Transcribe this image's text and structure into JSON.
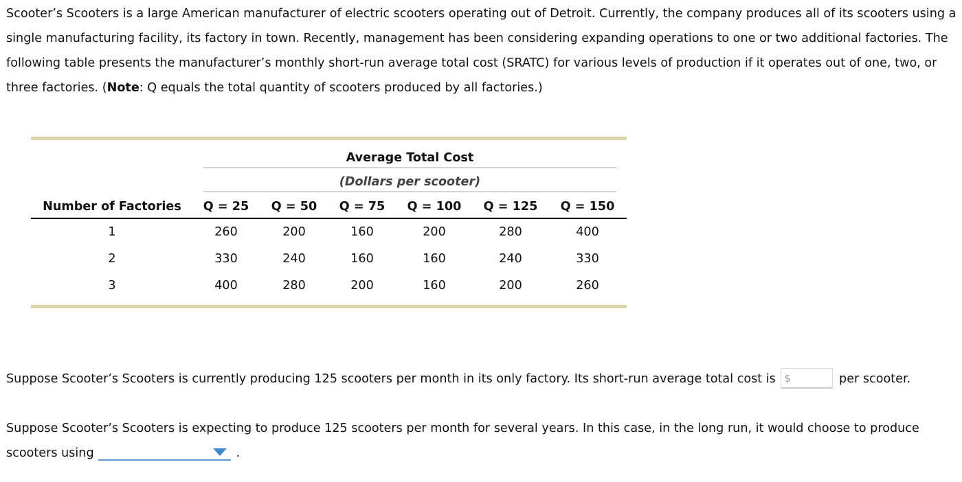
{
  "intro": {
    "part1": "Scooter’s Scooters is a large American manufacturer of electric scooters operating out of Detroit. Currently, the company produces all of its scooters using a single manufacturing facility, its factory in town. Recently, management has been considering expanding operations to one or two additional factories. The following table presents the manufacturer’s monthly short-run average total cost (SRATC) for various levels of production if it operates out of one, two, or three factories. (",
    "note_label": "Note",
    "part2": ": Q equals the total quantity of scooters produced by all factories.)"
  },
  "table": {
    "span_title": "Average Total Cost",
    "span_subtitle": "(Dollars per scooter)",
    "row_header": "Number of Factories",
    "columns": [
      "Q = 25",
      "Q = 50",
      "Q = 75",
      "Q = 100",
      "Q = 125",
      "Q = 150"
    ],
    "rows": [
      {
        "factories": "1",
        "values": [
          "260",
          "200",
          "160",
          "200",
          "280",
          "400"
        ]
      },
      {
        "factories": "2",
        "values": [
          "330",
          "240",
          "160",
          "160",
          "240",
          "330"
        ]
      },
      {
        "factories": "3",
        "values": [
          "400",
          "280",
          "200",
          "160",
          "200",
          "260"
        ]
      }
    ]
  },
  "question1": {
    "before": "Suppose Scooter’s Scooters is currently producing 125 scooters per month in its only factory. Its short-run average total cost is",
    "currency_symbol": "$",
    "value": "",
    "after": "per scooter."
  },
  "question2": {
    "before": "Suppose Scooter’s Scooters is expecting to produce 125 scooters per month for several years. In this case, in the long run, it would choose to produce scooters using",
    "selected": "",
    "after": "."
  },
  "colors": {
    "table_rule": "#dcd3a8",
    "dropdown_accent": "#3b8ad2"
  }
}
